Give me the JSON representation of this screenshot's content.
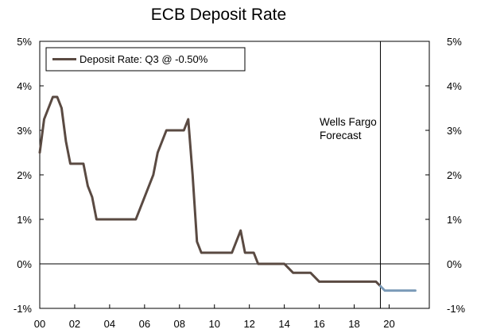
{
  "chart_data": {
    "type": "line",
    "title": "ECB Deposit Rate",
    "xlabel": "",
    "ylabel": "",
    "x_ticks": [
      "00",
      "02",
      "04",
      "06",
      "08",
      "10",
      "12",
      "14",
      "16",
      "18",
      "20"
    ],
    "y_ticks": [
      "5%",
      "4%",
      "3%",
      "2%",
      "1%",
      "0%",
      "-1%"
    ],
    "xlim": [
      2000.0,
      2022.3
    ],
    "ylim": [
      -1,
      5
    ],
    "grid": false,
    "legend_placement": "top-left",
    "legend_label": "Deposit Rate: Q3 @ -0.50%",
    "annotation": {
      "text_lines": [
        "Wells Fargo",
        "Forecast"
      ],
      "x": 2019.5
    },
    "colors": {
      "history": "#5a4a42",
      "forecast": "#7b9bb8",
      "axis": "#000000"
    },
    "series": [
      {
        "role": "history",
        "points": [
          [
            2000.0,
            2.5
          ],
          [
            2000.25,
            3.25
          ],
          [
            2000.5,
            3.5
          ],
          [
            2000.75,
            3.75
          ],
          [
            2001.0,
            3.75
          ],
          [
            2001.25,
            3.5
          ],
          [
            2001.5,
            2.75
          ],
          [
            2001.75,
            2.25
          ],
          [
            2002.0,
            2.25
          ],
          [
            2002.25,
            2.25
          ],
          [
            2002.5,
            2.25
          ],
          [
            2002.75,
            1.75
          ],
          [
            2003.0,
            1.5
          ],
          [
            2003.25,
            1.0
          ],
          [
            2003.5,
            1.0
          ],
          [
            2004.0,
            1.0
          ],
          [
            2005.0,
            1.0
          ],
          [
            2005.5,
            1.0
          ],
          [
            2005.75,
            1.25
          ],
          [
            2006.0,
            1.5
          ],
          [
            2006.25,
            1.75
          ],
          [
            2006.5,
            2.0
          ],
          [
            2006.75,
            2.5
          ],
          [
            2007.0,
            2.75
          ],
          [
            2007.25,
            3.0
          ],
          [
            2007.5,
            3.0
          ],
          [
            2008.0,
            3.0
          ],
          [
            2008.25,
            3.0
          ],
          [
            2008.5,
            3.25
          ],
          [
            2008.75,
            2.0
          ],
          [
            2009.0,
            0.5
          ],
          [
            2009.25,
            0.25
          ],
          [
            2009.5,
            0.25
          ],
          [
            2010.0,
            0.25
          ],
          [
            2011.0,
            0.25
          ],
          [
            2011.25,
            0.5
          ],
          [
            2011.5,
            0.75
          ],
          [
            2011.75,
            0.25
          ],
          [
            2012.0,
            0.25
          ],
          [
            2012.25,
            0.25
          ],
          [
            2012.5,
            0.0
          ],
          [
            2013.0,
            0.0
          ],
          [
            2013.5,
            0.0
          ],
          [
            2014.0,
            0.0
          ],
          [
            2014.25,
            -0.1
          ],
          [
            2014.5,
            -0.2
          ],
          [
            2015.0,
            -0.2
          ],
          [
            2015.5,
            -0.2
          ],
          [
            2015.75,
            -0.3
          ],
          [
            2016.0,
            -0.4
          ],
          [
            2016.5,
            -0.4
          ],
          [
            2017.0,
            -0.4
          ],
          [
            2018.0,
            -0.4
          ],
          [
            2019.0,
            -0.4
          ],
          [
            2019.25,
            -0.4
          ],
          [
            2019.5,
            -0.5
          ]
        ]
      },
      {
        "role": "forecast",
        "points": [
          [
            2019.5,
            -0.5
          ],
          [
            2019.75,
            -0.6
          ],
          [
            2020.0,
            -0.6
          ],
          [
            2020.5,
            -0.6
          ],
          [
            2021.0,
            -0.6
          ],
          [
            2021.5,
            -0.6
          ]
        ]
      }
    ]
  }
}
